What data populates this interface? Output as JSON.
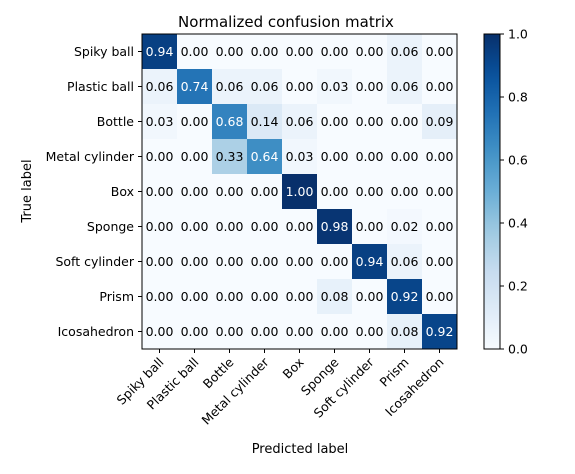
{
  "chart_data": {
    "type": "heatmap",
    "title": "Normalized confusion matrix",
    "xlabel": "Predicted label",
    "ylabel": "True label",
    "row_labels": [
      "Spiky ball",
      "Plastic ball",
      "Bottle",
      "Metal cylinder",
      "Box",
      "Sponge",
      "Soft cylinder",
      "Prism",
      "Icosahedron"
    ],
    "col_labels": [
      "Spiky ball",
      "Plastic ball",
      "Bottle",
      "Metal cylinder",
      "Box",
      "Sponge",
      "Soft cylinder",
      "Prism",
      "Icosahedron"
    ],
    "values": [
      [
        0.94,
        0.0,
        0.0,
        0.0,
        0.0,
        0.0,
        0.0,
        0.06,
        0.0
      ],
      [
        0.06,
        0.74,
        0.06,
        0.06,
        0.0,
        0.03,
        0.0,
        0.06,
        0.0
      ],
      [
        0.03,
        0.0,
        0.68,
        0.14,
        0.06,
        0.0,
        0.0,
        0.0,
        0.09
      ],
      [
        0.0,
        0.0,
        0.33,
        0.64,
        0.03,
        0.0,
        0.0,
        0.0,
        0.0
      ],
      [
        0.0,
        0.0,
        0.0,
        0.0,
        1.0,
        0.0,
        0.0,
        0.0,
        0.0
      ],
      [
        0.0,
        0.0,
        0.0,
        0.0,
        0.0,
        0.98,
        0.0,
        0.02,
        0.0
      ],
      [
        0.0,
        0.0,
        0.0,
        0.0,
        0.0,
        0.0,
        0.94,
        0.06,
        0.0
      ],
      [
        0.0,
        0.0,
        0.0,
        0.0,
        0.0,
        0.08,
        0.0,
        0.92,
        0.0
      ],
      [
        0.0,
        0.0,
        0.0,
        0.0,
        0.0,
        0.0,
        0.0,
        0.08,
        0.92
      ]
    ],
    "value_format": "2 decimals",
    "colormap": "Blues",
    "colorbar": {
      "range": [
        0.0,
        1.0
      ],
      "ticks": [
        "0.0",
        "0.2",
        "0.4",
        "0.6",
        "0.8",
        "1.0"
      ]
    },
    "colors": {
      "low": "#f7fbff",
      "high": "#08306b",
      "text_on_dark": "#ffffff",
      "text_on_light": "#000000"
    }
  }
}
